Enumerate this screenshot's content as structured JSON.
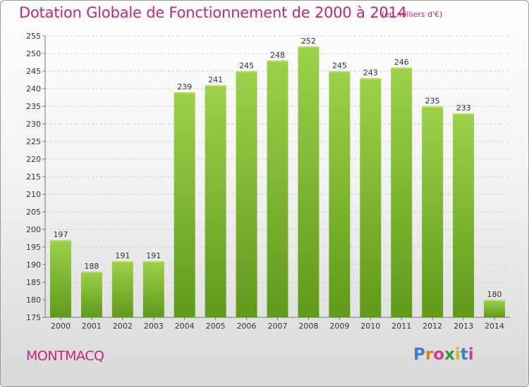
{
  "header": {
    "title": "Dotation Globale de Fonctionnement de 2000 à 2014",
    "unit_note": "(en milliers d'€)"
  },
  "footer": {
    "commune": "MONTMACQ",
    "logo_text": "Proxiti"
  },
  "colors": {
    "accent": "#c0277a",
    "bar_light": "#9ed14a",
    "bar_dark": "#5f9a1a"
  },
  "chart_data": {
    "type": "bar",
    "title": "Dotation Globale de Fonctionnement de 2000 à 2014",
    "subtitle": "(en milliers d'€)",
    "xlabel": "",
    "ylabel": "",
    "categories": [
      "2000",
      "2001",
      "2002",
      "2003",
      "2004",
      "2005",
      "2006",
      "2007",
      "2008",
      "2009",
      "2010",
      "2011",
      "2012",
      "2013",
      "2014"
    ],
    "values": [
      197,
      188,
      191,
      191,
      239,
      241,
      245,
      248,
      252,
      245,
      243,
      246,
      235,
      233,
      180
    ],
    "ylim": [
      175,
      255
    ],
    "yticks": [
      175,
      180,
      185,
      190,
      195,
      200,
      205,
      210,
      215,
      220,
      225,
      230,
      235,
      240,
      245,
      250,
      255
    ],
    "grid": true,
    "legend": "none"
  }
}
